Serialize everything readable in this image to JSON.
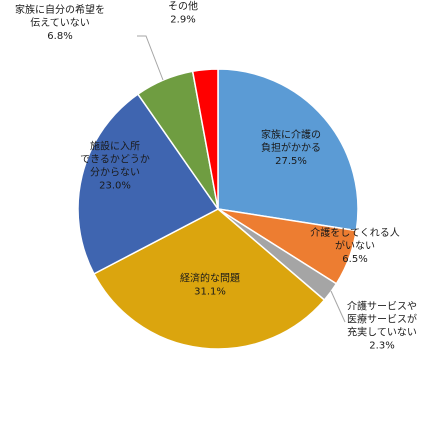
{
  "chart_data": {
    "type": "pie",
    "categories": [
      "家族に介護の負担がかかる",
      "介護をしてくれる人がいない",
      "介護サービスや医療サービスが充実していない",
      "経済的な問題",
      "施設に入所できるかどうか分からない",
      "家族に自分の希望を伝えていない",
      "その他"
    ],
    "values": [
      27.5,
      6.5,
      2.3,
      31.1,
      23.0,
      6.8,
      2.9
    ],
    "slices": [
      {
        "label_lines": [
          "家族に介護の",
          "負担がかかる"
        ],
        "value_text": "27.5%",
        "color": "#5b9bd5"
      },
      {
        "label_lines": [
          "介護をしてくれる人",
          "がいない"
        ],
        "value_text": "6.5%",
        "color": "#ed7d31"
      },
      {
        "label_lines": [
          "介護サービスや",
          "医療サービスが",
          "充実していない"
        ],
        "value_text": "2.3%",
        "color": "#a5a5a5"
      },
      {
        "label_lines": [
          "経済的な問題"
        ],
        "value_text": "31.1%",
        "color": "#dba50e"
      },
      {
        "label_lines": [
          "施設に入所",
          "できるかどうか",
          "分からない"
        ],
        "value_text": "23.0%",
        "color": "#3f65b0"
      },
      {
        "label_lines": [
          "家族に自分の希望を",
          "伝えていない"
        ],
        "value_text": "6.8%",
        "color": "#6f9d41"
      },
      {
        "label_lines": [
          "その他"
        ],
        "value_text": "2.9%",
        "color": "#ff0000"
      }
    ],
    "start_angle_deg": 0,
    "direction": "clockwise",
    "legend": "none"
  }
}
